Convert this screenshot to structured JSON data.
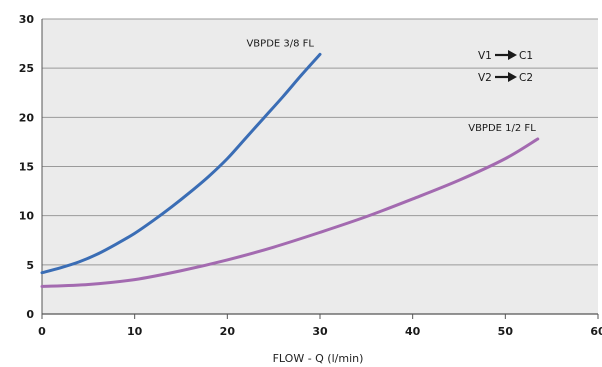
{
  "chart_data": {
    "type": "line",
    "xlabel": "FLOW - Q (l/min)",
    "ylabel": "",
    "xlim": [
      0,
      60
    ],
    "ylim": [
      0,
      30
    ],
    "x_ticks": [
      "0",
      "10",
      "20",
      "30",
      "40",
      "50",
      "60"
    ],
    "y_ticks": [
      "0",
      "5",
      "10",
      "15",
      "20",
      "25",
      "30"
    ],
    "grid": "horizontal",
    "background": "#ebebeb",
    "grid_color": "#9a9a9a",
    "series": [
      {
        "name": "VBPDE 3/8 FL",
        "color": "#3a6db5",
        "x": [
          0,
          2,
          4,
          6,
          8,
          10,
          12,
          14,
          16,
          18,
          20,
          22,
          24,
          26,
          28,
          30
        ],
        "y": [
          4.2,
          4.7,
          5.3,
          6.1,
          7.1,
          8.2,
          9.5,
          10.9,
          12.4,
          14.0,
          15.8,
          17.9,
          20.0,
          22.1,
          24.3,
          26.4
        ]
      },
      {
        "name": "VBPDE 1/2 FL",
        "color": "#a36ab0",
        "x": [
          0,
          5,
          10,
          15,
          20,
          25,
          30,
          35,
          40,
          45,
          50,
          53.5
        ],
        "y": [
          2.8,
          3.0,
          3.5,
          4.4,
          5.5,
          6.8,
          8.3,
          9.9,
          11.7,
          13.6,
          15.8,
          17.8
        ]
      }
    ],
    "legend": {
      "position": "top-right",
      "entries": [
        {
          "from": "V1",
          "to": "C1"
        },
        {
          "from": "V2",
          "to": "C2"
        }
      ]
    }
  }
}
